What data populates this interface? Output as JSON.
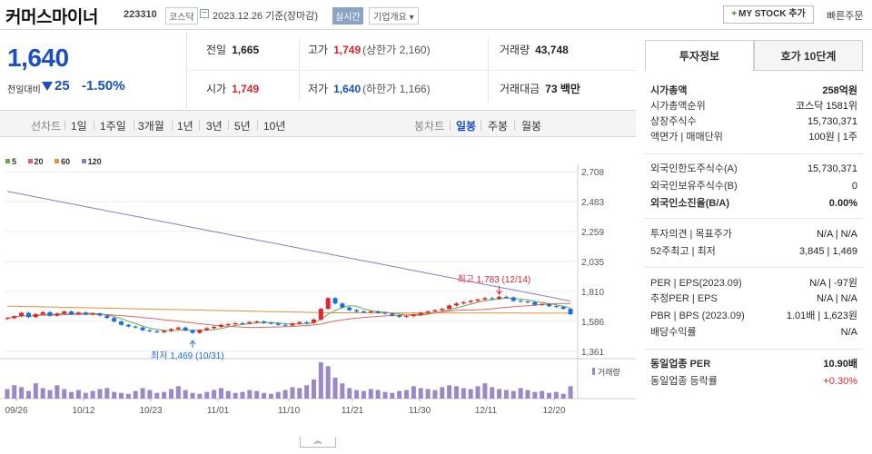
{
  "header": {
    "name": "커머스마이너",
    "code": "223310",
    "market": "코스닥",
    "date": "2023.12.26 기준(장마감)",
    "live": "실시간",
    "overview": "기업개요",
    "mystock": "MY STOCK 추가",
    "quick": "빠른주문"
  },
  "price": {
    "current": "1,640",
    "label": "전일대비",
    "change": "25",
    "rate": "-1.50%"
  },
  "stats": {
    "prev_k": "전일",
    "prev_v": "1,665",
    "open_k": "시가",
    "open_v": "1,749",
    "high_k": "고가",
    "high_v": "1,749",
    "high_sub": "(상한가 2,160)",
    "low_k": "저가",
    "low_v": "1,640",
    "low_sub": "(하한가 1,166)",
    "vol_k": "거래량",
    "vol_v": "43,748",
    "amt_k": "거래대금",
    "amt_v": "73 백만"
  },
  "toolbar": {
    "line": "선차트",
    "d1": "1일",
    "w1": "1주일",
    "m3": "3개월",
    "y1": "1년",
    "y3": "3년",
    "y5": "5년",
    "y10": "10년",
    "candle": "봉차트",
    "daily": "일봉",
    "weekly": "주봉",
    "monthly": "월봉"
  },
  "legend": [
    {
      "label": "5",
      "color": "#6aa84f"
    },
    {
      "label": "20",
      "color": "#e06666"
    },
    {
      "label": "60",
      "color": "#e69138"
    },
    {
      "label": "120",
      "color": "#8e7cc3"
    }
  ],
  "chart_data": {
    "type": "candlestick",
    "y_ticks": [
      "2,708",
      "2,483",
      "2,259",
      "2,035",
      "1,810",
      "1,586",
      "1,361"
    ],
    "ylim": [
      1361,
      2708
    ],
    "x_ticks": [
      "09/26",
      "10/12",
      "10/23",
      "11/01",
      "11/10",
      "11/21",
      "11/30",
      "12/11",
      "12/20"
    ],
    "max_label": "최고 1,783 (12/14)",
    "min_label": "최저 1,469 (10/31)",
    "volume_label": "거래량",
    "up_color": "#e2252c",
    "down_color": "#1a6fe0",
    "close": [
      1610,
      1625,
      1650,
      1618,
      1640,
      1655,
      1628,
      1645,
      1660,
      1640,
      1652,
      1638,
      1645,
      1630,
      1612,
      1585,
      1560,
      1548,
      1540,
      1520,
      1512,
      1505,
      1515,
      1528,
      1540,
      1518,
      1500,
      1520,
      1535,
      1545,
      1560,
      1565,
      1572,
      1570,
      1580,
      1585,
      1575,
      1570,
      1560,
      1555,
      1570,
      1580,
      1575,
      1600,
      1680,
      1760,
      1720,
      1690,
      1670,
      1660,
      1655,
      1660,
      1650,
      1645,
      1630,
      1620,
      1625,
      1635,
      1650,
      1660,
      1670,
      1680,
      1705,
      1720,
      1730,
      1740,
      1750,
      1760,
      1755,
      1770,
      1765,
      1740,
      1735,
      1730,
      1710,
      1715,
      1700,
      1695,
      1680,
      1640
    ],
    "volume": [
      10,
      14,
      12,
      8,
      16,
      11,
      9,
      14,
      10,
      7,
      9,
      6,
      8,
      10,
      11,
      7,
      6,
      5,
      8,
      11,
      9,
      6,
      7,
      10,
      13,
      9,
      6,
      5,
      7,
      9,
      11,
      8,
      6,
      7,
      9,
      8,
      6,
      5,
      7,
      9,
      12,
      11,
      14,
      20,
      38,
      34,
      22,
      16,
      11,
      9,
      8,
      10,
      9,
      7,
      6,
      8,
      9,
      13,
      11,
      10,
      9,
      12,
      14,
      13,
      11,
      10,
      13,
      16,
      12,
      10,
      9,
      8,
      11,
      9,
      7,
      8,
      6,
      7,
      5,
      13
    ]
  },
  "panel": {
    "tab_invest": "투자정보",
    "tab_hoga": "호가 10단계",
    "rows": [
      {
        "k": "시가총액",
        "v": "258억원",
        "bold": true
      },
      {
        "k": "시가총액순위",
        "v": "코스닥 1581위"
      },
      {
        "k": "상장주식수",
        "v": "15,730,371"
      },
      {
        "k": "액면가 | 매매단위",
        "v": "100원 | 1주"
      },
      {
        "k": "외국인한도주식수(A)",
        "v": "15,730,371"
      },
      {
        "k": "외국인보유주식수(B)",
        "v": "0"
      },
      {
        "k": "외국인소진율(B/A)",
        "v": "0.00%",
        "bold": true
      },
      {
        "k": "투자의견 | 목표주가",
        "v": "N/A | N/A"
      },
      {
        "k": "52주최고 | 최저",
        "v": "3,845 | 1,469"
      },
      {
        "k": "PER | EPS(2023.09)",
        "v": "N/A | -97원"
      },
      {
        "k": "추정PER | EPS",
        "v": "N/A | N/A"
      },
      {
        "k": "PBR | BPS (2023.09)",
        "v": "1.01배 | 1,623원"
      },
      {
        "k": "배당수익률",
        "v": "N/A"
      },
      {
        "k": "동일업종 PER",
        "v": "10.90배",
        "bold": true
      },
      {
        "k": "동일업종 등락률",
        "v": "+0.30%",
        "red": true
      }
    ]
  }
}
